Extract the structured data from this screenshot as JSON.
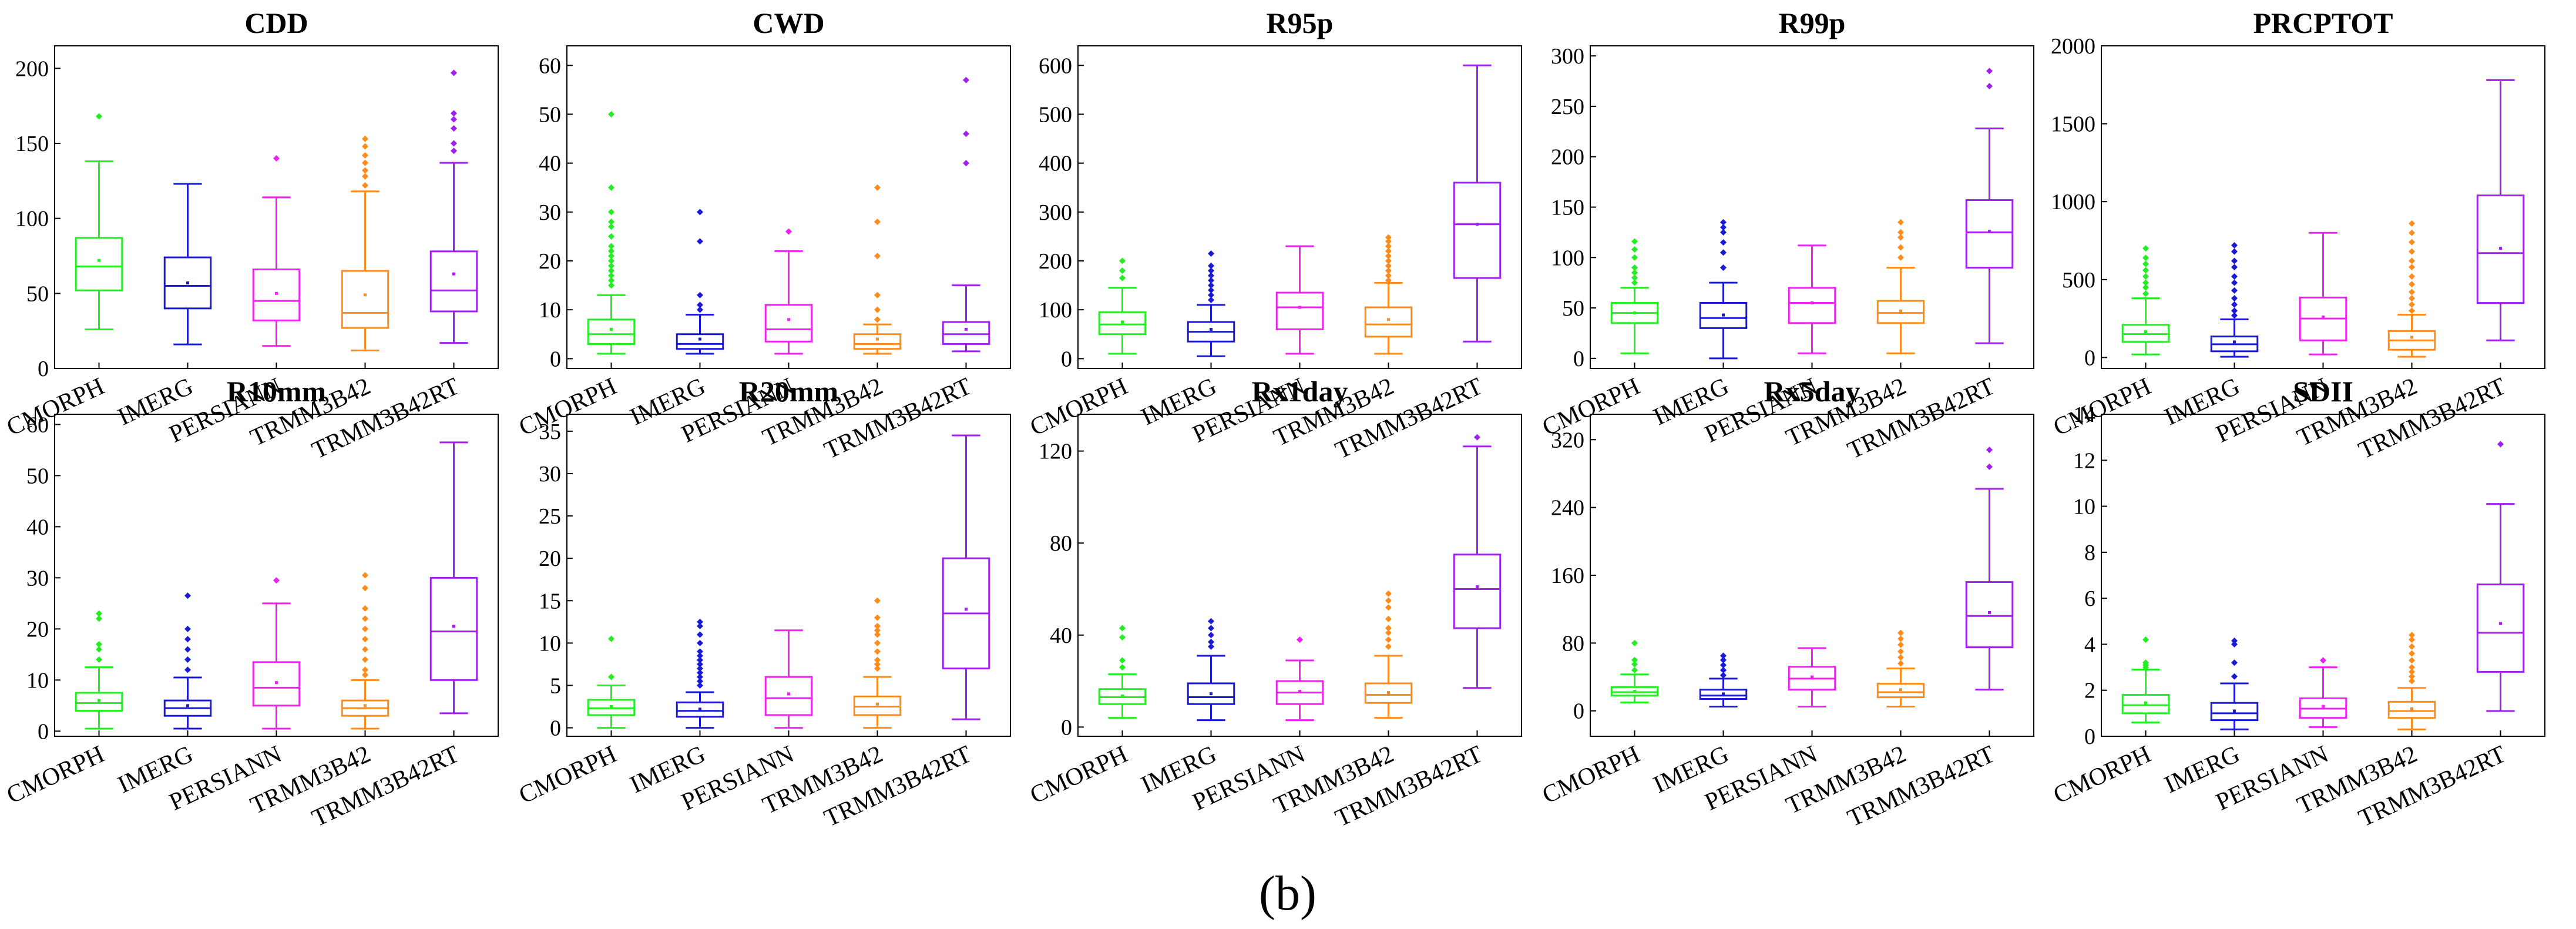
{
  "caption": "(b)",
  "categories": [
    "CMORPH",
    "IMERG",
    "PERSIANN",
    "TRMM3B42",
    "TRMM3B42RT"
  ],
  "colors": [
    "#22ee22",
    "#1a1ad6",
    "#ee22ee",
    "#ff8c1a",
    "#a020f0"
  ],
  "chart_data": [
    {
      "type": "box",
      "title": "CDD",
      "ylim": [
        0,
        215
      ],
      "yticks": [
        0,
        50,
        100,
        150,
        200
      ],
      "series": [
        {
          "name": "CMORPH",
          "min": 26,
          "q1": 52,
          "median": 68,
          "q3": 87,
          "max": 138,
          "mean": 72,
          "outliers": [
            168
          ]
        },
        {
          "name": "IMERG",
          "min": 16,
          "q1": 40,
          "median": 55,
          "q3": 74,
          "max": 123,
          "mean": 57,
          "outliers": []
        },
        {
          "name": "PERSIANN",
          "min": 15,
          "q1": 32,
          "median": 45,
          "q3": 66,
          "max": 114,
          "mean": 50,
          "outliers": [
            140
          ]
        },
        {
          "name": "TRMM3B42",
          "min": 12,
          "q1": 27,
          "median": 37,
          "q3": 65,
          "max": 118,
          "mean": 49,
          "outliers": [
            122,
            128,
            132,
            137,
            142,
            148,
            153
          ]
        },
        {
          "name": "TRMM3B42RT",
          "min": 17,
          "q1": 38,
          "median": 52,
          "q3": 78,
          "max": 137,
          "mean": 63,
          "outliers": [
            145,
            150,
            160,
            166,
            170,
            197
          ]
        }
      ]
    },
    {
      "type": "box",
      "title": "CWD",
      "ylim": [
        -2,
        64
      ],
      "yticks": [
        0,
        10,
        20,
        30,
        40,
        50,
        60
      ],
      "series": [
        {
          "name": "CMORPH",
          "min": 1,
          "q1": 3,
          "median": 5,
          "q3": 8,
          "max": 13,
          "mean": 6,
          "outliers": [
            15,
            16,
            17,
            18,
            19,
            20,
            21,
            22,
            23,
            25,
            27,
            28,
            30,
            35,
            50
          ]
        },
        {
          "name": "IMERG",
          "min": 1,
          "q1": 2,
          "median": 3,
          "q3": 5,
          "max": 9,
          "mean": 4,
          "outliers": [
            10,
            11,
            13,
            24,
            30
          ]
        },
        {
          "name": "PERSIANN",
          "min": 1,
          "q1": 3.5,
          "median": 6,
          "q3": 11,
          "max": 22,
          "mean": 8,
          "outliers": [
            26
          ]
        },
        {
          "name": "TRMM3B42",
          "min": 1,
          "q1": 2,
          "median": 3,
          "q3": 5,
          "max": 7,
          "mean": 4,
          "outliers": [
            8,
            10,
            13,
            21,
            28,
            35
          ]
        },
        {
          "name": "TRMM3B42RT",
          "min": 1.5,
          "q1": 3,
          "median": 5,
          "q3": 7.5,
          "max": 15,
          "mean": 6,
          "outliers": [
            40,
            46,
            57
          ]
        }
      ]
    },
    {
      "type": "box",
      "title": "R95p",
      "ylim": [
        -20,
        640
      ],
      "yticks": [
        0,
        100,
        200,
        300,
        400,
        500,
        600
      ],
      "series": [
        {
          "name": "CMORPH",
          "min": 10,
          "q1": 50,
          "median": 70,
          "q3": 95,
          "max": 145,
          "mean": 75,
          "outliers": [
            165,
            180,
            200
          ]
        },
        {
          "name": "IMERG",
          "min": 5,
          "q1": 35,
          "median": 55,
          "q3": 75,
          "max": 110,
          "mean": 60,
          "outliers": [
            120,
            130,
            140,
            150,
            160,
            170,
            180,
            190,
            215
          ]
        },
        {
          "name": "PERSIANN",
          "min": 10,
          "q1": 60,
          "median": 105,
          "q3": 135,
          "max": 230,
          "mean": 105,
          "outliers": []
        },
        {
          "name": "TRMM3B42",
          "min": 10,
          "q1": 45,
          "median": 70,
          "q3": 105,
          "max": 155,
          "mean": 80,
          "outliers": [
            160,
            170,
            180,
            190,
            200,
            210,
            220,
            230,
            240,
            248
          ]
        },
        {
          "name": "TRMM3B42RT",
          "min": 35,
          "q1": 165,
          "median": 275,
          "q3": 360,
          "max": 600,
          "mean": 275,
          "outliers": []
        }
      ]
    },
    {
      "type": "box",
      "title": "R99p",
      "ylim": [
        -10,
        310
      ],
      "yticks": [
        0,
        50,
        100,
        150,
        200,
        250,
        300
      ],
      "series": [
        {
          "name": "CMORPH",
          "min": 5,
          "q1": 35,
          "median": 45,
          "q3": 55,
          "max": 70,
          "mean": 45,
          "outliers": [
            75,
            80,
            85,
            90,
            100,
            108,
            116
          ]
        },
        {
          "name": "IMERG",
          "min": 0,
          "q1": 30,
          "median": 40,
          "q3": 55,
          "max": 75,
          "mean": 43,
          "outliers": [
            90,
            105,
            115,
            125,
            130,
            135
          ]
        },
        {
          "name": "PERSIANN",
          "min": 5,
          "q1": 35,
          "median": 55,
          "q3": 70,
          "max": 112,
          "mean": 55,
          "outliers": []
        },
        {
          "name": "TRMM3B42",
          "min": 5,
          "q1": 35,
          "median": 45,
          "q3": 57,
          "max": 90,
          "mean": 47,
          "outliers": [
            100,
            110,
            120,
            125,
            135
          ]
        },
        {
          "name": "TRMM3B42RT",
          "min": 15,
          "q1": 90,
          "median": 125,
          "q3": 157,
          "max": 228,
          "mean": 126,
          "outliers": [
            270,
            285
          ]
        }
      ]
    },
    {
      "type": "box",
      "title": "PRCPTOT",
      "ylim": [
        -70,
        2000
      ],
      "yticks": [
        0,
        500,
        1000,
        1500,
        2000
      ],
      "series": [
        {
          "name": "CMORPH",
          "min": 20,
          "q1": 100,
          "median": 150,
          "q3": 210,
          "max": 380,
          "mean": 165,
          "outliers": [
            410,
            450,
            480,
            520,
            560,
            600,
            640,
            700
          ]
        },
        {
          "name": "IMERG",
          "min": 5,
          "q1": 40,
          "median": 85,
          "q3": 135,
          "max": 245,
          "mean": 100,
          "outliers": [
            270,
            300,
            340,
            380,
            430,
            480,
            520,
            580,
            620,
            680,
            720
          ]
        },
        {
          "name": "PERSIANN",
          "min": 20,
          "q1": 110,
          "median": 250,
          "q3": 385,
          "max": 800,
          "mean": 260,
          "outliers": []
        },
        {
          "name": "TRMM3B42",
          "min": 5,
          "q1": 50,
          "median": 110,
          "q3": 170,
          "max": 275,
          "mean": 130,
          "outliers": [
            300,
            340,
            380,
            420,
            470,
            520,
            580,
            620,
            680,
            740,
            800,
            860
          ]
        },
        {
          "name": "TRMM3B42RT",
          "min": 110,
          "q1": 350,
          "median": 670,
          "q3": 1040,
          "max": 1780,
          "mean": 700,
          "outliers": []
        }
      ]
    },
    {
      "type": "box",
      "title": "R10mm",
      "ylim": [
        -1,
        62
      ],
      "yticks": [
        0,
        10,
        20,
        30,
        40,
        50,
        60
      ],
      "series": [
        {
          "name": "CMORPH",
          "min": 0.5,
          "q1": 4,
          "median": 5.5,
          "q3": 7.5,
          "max": 12.5,
          "mean": 6,
          "outliers": [
            14,
            16,
            17,
            22,
            23
          ]
        },
        {
          "name": "IMERG",
          "min": 0.5,
          "q1": 3,
          "median": 4.5,
          "q3": 6,
          "max": 10.5,
          "mean": 5,
          "outliers": [
            12,
            14,
            16,
            18,
            20,
            26.5
          ]
        },
        {
          "name": "PERSIANN",
          "min": 0.5,
          "q1": 5,
          "median": 8.5,
          "q3": 13.5,
          "max": 25,
          "mean": 9.5,
          "outliers": [
            29.5
          ]
        },
        {
          "name": "TRMM3B42",
          "min": 0.5,
          "q1": 3,
          "median": 4.5,
          "q3": 6,
          "max": 10,
          "mean": 5,
          "outliers": [
            11,
            12,
            14,
            16,
            18,
            20,
            22,
            24,
            28,
            30.5
          ]
        },
        {
          "name": "TRMM3B42RT",
          "min": 3.5,
          "q1": 10,
          "median": 19.5,
          "q3": 30,
          "max": 56.5,
          "mean": 20.5,
          "outliers": []
        }
      ]
    },
    {
      "type": "box",
      "title": "R20mm",
      "ylim": [
        -1,
        37
      ],
      "yticks": [
        0,
        5,
        10,
        15,
        20,
        25,
        30,
        35
      ],
      "series": [
        {
          "name": "CMORPH",
          "min": 0,
          "q1": 1.5,
          "median": 2.3,
          "q3": 3.3,
          "max": 5,
          "mean": 2.5,
          "outliers": [
            6,
            10.5
          ]
        },
        {
          "name": "IMERG",
          "min": 0,
          "q1": 1.3,
          "median": 2,
          "q3": 3,
          "max": 4.2,
          "mean": 2.2,
          "outliers": [
            5,
            5.5,
            6,
            6.5,
            7,
            7.5,
            8,
            8.5,
            9,
            10,
            11,
            12,
            12.5
          ]
        },
        {
          "name": "PERSIANN",
          "min": 0,
          "q1": 1.5,
          "median": 3.5,
          "q3": 6,
          "max": 11.5,
          "mean": 4,
          "outliers": []
        },
        {
          "name": "TRMM3B42",
          "min": 0,
          "q1": 1.5,
          "median": 2.5,
          "q3": 3.7,
          "max": 6,
          "mean": 2.8,
          "outliers": [
            7,
            7.5,
            8,
            9,
            10,
            11,
            11.5,
            12,
            13,
            15
          ]
        },
        {
          "name": "TRMM3B42RT",
          "min": 1,
          "q1": 7,
          "median": 13.5,
          "q3": 20,
          "max": 34.5,
          "mean": 14,
          "outliers": []
        }
      ]
    },
    {
      "type": "box",
      "title": "Rx1day",
      "ylim": [
        -4,
        136
      ],
      "yticks": [
        0,
        40,
        80,
        120
      ],
      "series": [
        {
          "name": "CMORPH",
          "min": 4,
          "q1": 10,
          "median": 13,
          "q3": 16.5,
          "max": 23,
          "mean": 13.5,
          "outliers": [
            26,
            29,
            39,
            43
          ]
        },
        {
          "name": "IMERG",
          "min": 3,
          "q1": 10,
          "median": 13,
          "q3": 19,
          "max": 31,
          "mean": 14.5,
          "outliers": [
            35,
            37,
            40,
            43,
            46
          ]
        },
        {
          "name": "PERSIANN",
          "min": 3,
          "q1": 10,
          "median": 15,
          "q3": 20,
          "max": 29,
          "mean": 15.5,
          "outliers": [
            38
          ]
        },
        {
          "name": "TRMM3B42",
          "min": 4,
          "q1": 10.5,
          "median": 14,
          "q3": 19,
          "max": 31,
          "mean": 15,
          "outliers": [
            35,
            38,
            41,
            43,
            47,
            52,
            55,
            58
          ]
        },
        {
          "name": "TRMM3B42RT",
          "min": 17,
          "q1": 43,
          "median": 60,
          "q3": 75,
          "max": 122,
          "mean": 61,
          "outliers": [
            126
          ]
        }
      ]
    },
    {
      "type": "box",
      "title": "Rx5day",
      "ylim": [
        -30,
        350
      ],
      "yticks": [
        0,
        80,
        160,
        240,
        320
      ],
      "series": [
        {
          "name": "CMORPH",
          "min": 10,
          "q1": 18,
          "median": 22,
          "q3": 28,
          "max": 43,
          "mean": 23,
          "outliers": [
            48,
            55,
            60,
            80
          ]
        },
        {
          "name": "IMERG",
          "min": 5,
          "q1": 14,
          "median": 18,
          "q3": 25,
          "max": 38,
          "mean": 20,
          "outliers": [
            42,
            48,
            54,
            60,
            65
          ]
        },
        {
          "name": "PERSIANN",
          "min": 5,
          "q1": 25,
          "median": 38,
          "q3": 52,
          "max": 74,
          "mean": 40,
          "outliers": []
        },
        {
          "name": "TRMM3B42",
          "min": 5,
          "q1": 16,
          "median": 22,
          "q3": 32,
          "max": 50,
          "mean": 25,
          "outliers": [
            56,
            63,
            70,
            78,
            85,
            92
          ]
        },
        {
          "name": "TRMM3B42RT",
          "min": 25,
          "q1": 75,
          "median": 112,
          "q3": 152,
          "max": 262,
          "mean": 116,
          "outliers": [
            288,
            308
          ]
        }
      ]
    },
    {
      "type": "box",
      "title": "SDII",
      "ylim": [
        0,
        14
      ],
      "yticks": [
        0,
        2,
        4,
        6,
        8,
        10,
        12,
        14
      ],
      "series": [
        {
          "name": "CMORPH",
          "min": 0.6,
          "q1": 1,
          "median": 1.35,
          "q3": 1.8,
          "max": 2.9,
          "mean": 1.45,
          "outliers": [
            3,
            3.1,
            3.2,
            4.2
          ]
        },
        {
          "name": "IMERG",
          "min": 0.3,
          "q1": 0.7,
          "median": 1.0,
          "q3": 1.45,
          "max": 2.3,
          "mean": 1.1,
          "outliers": [
            2.6,
            3.2,
            4.0,
            4.15
          ]
        },
        {
          "name": "PERSIANN",
          "min": 0.4,
          "q1": 0.8,
          "median": 1.2,
          "q3": 1.65,
          "max": 3,
          "mean": 1.3,
          "outliers": [
            3.3
          ]
        },
        {
          "name": "TRMM3B42",
          "min": 0.3,
          "q1": 0.8,
          "median": 1.1,
          "q3": 1.5,
          "max": 2.1,
          "mean": 1.2,
          "outliers": [
            2.4,
            2.6,
            2.8,
            3,
            3.3,
            3.6,
            3.9,
            4.2,
            4.4
          ]
        },
        {
          "name": "TRMM3B42RT",
          "min": 1.1,
          "q1": 2.8,
          "median": 4.5,
          "q3": 6.6,
          "max": 10.1,
          "mean": 4.9,
          "outliers": [
            12.7
          ]
        }
      ]
    }
  ]
}
